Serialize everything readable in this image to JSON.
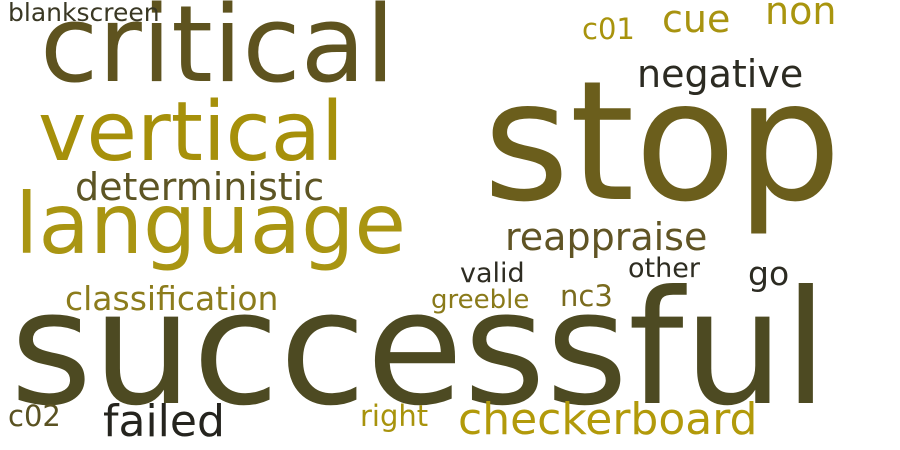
{
  "words": {
    "successful": {
      "text": "successful",
      "color": "#4d4a22"
    },
    "stop": {
      "text": "stop",
      "color": "#6b5e1c"
    },
    "critical": {
      "text": "critical",
      "color": "#5e531f"
    },
    "vertical": {
      "text": "vertical",
      "color": "#a6900a"
    },
    "language": {
      "text": "language",
      "color": "#a99512"
    },
    "deterministic": {
      "text": "deterministic",
      "color": "#5d5524"
    },
    "negative": {
      "text": "negative",
      "color": "#2c2b22"
    },
    "reappraise": {
      "text": "reappraise",
      "color": "#605424"
    },
    "cue": {
      "text": "cue",
      "color": "#a89310"
    },
    "non": {
      "text": "non",
      "color": "#a9950e"
    },
    "classification": {
      "text": "classification",
      "color": "#8c7c1c"
    },
    "checkerboard": {
      "text": "checkerboard",
      "color": "#b29a0a"
    },
    "failed": {
      "text": "failed",
      "color": "#25241e"
    },
    "valid": {
      "text": "valid",
      "color": "#2e2c22"
    },
    "other": {
      "text": "other",
      "color": "#2e2d22"
    },
    "go": {
      "text": "go",
      "color": "#2c2b22"
    },
    "nc3": {
      "text": "nc3",
      "color": "#7a6b1e"
    },
    "greeble": {
      "text": "greeble",
      "color": "#8a7a1a"
    },
    "blankscreen": {
      "text": "blankscreen",
      "color": "#3a3824"
    },
    "c01": {
      "text": "c01",
      "color": "#a8930c"
    },
    "c02": {
      "text": "c02",
      "color": "#5a5222"
    },
    "right": {
      "text": "right",
      "color": "#a8930c"
    }
  }
}
